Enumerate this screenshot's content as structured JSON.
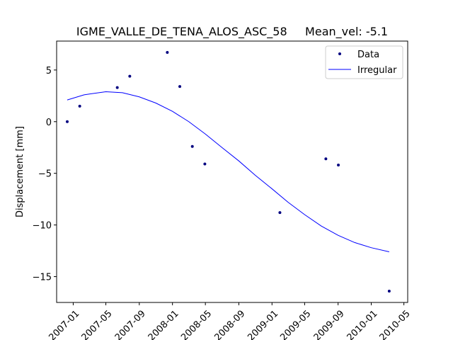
{
  "chart_data": {
    "type": "scatter",
    "title": "IGME_VALLE_DE_TENA_ALOS_ASC_58     Mean_vel: -5.1",
    "xlabel": "",
    "ylabel": "Displacement [mm]",
    "xlim": [
      "2006-11-01",
      "2010-05-15"
    ],
    "ylim": [
      -17.5,
      7.8
    ],
    "x_ticks": [
      "2007-01",
      "2007-05",
      "2007-09",
      "2008-01",
      "2008-05",
      "2008-09",
      "2009-01",
      "2009-05",
      "2009-09",
      "2010-01",
      "2010-05"
    ],
    "y_ticks": [
      5,
      0,
      -5,
      -10,
      -15
    ],
    "y_tick_labels": [
      "5",
      "0",
      "−5",
      "−10",
      "−15"
    ],
    "grid": false,
    "legend_position": "top-right",
    "series": [
      {
        "name": "Data",
        "kind": "points",
        "color": "#000080",
        "points": [
          {
            "x": "2006-12-10",
            "y": 0.0
          },
          {
            "x": "2007-01-25",
            "y": 1.5
          },
          {
            "x": "2007-06-12",
            "y": 3.3
          },
          {
            "x": "2007-07-28",
            "y": 4.4
          },
          {
            "x": "2007-12-13",
            "y": 6.7
          },
          {
            "x": "2008-01-28",
            "y": 3.4
          },
          {
            "x": "2008-03-14",
            "y": -2.4
          },
          {
            "x": "2008-04-29",
            "y": -4.1
          },
          {
            "x": "2009-01-30",
            "y": -8.8
          },
          {
            "x": "2009-07-18",
            "y": -3.6
          },
          {
            "x": "2009-09-02",
            "y": -4.2
          },
          {
            "x": "2010-03-08",
            "y": -16.4
          }
        ]
      },
      {
        "name": "Irregular",
        "kind": "line",
        "color": "#0000ff",
        "points": [
          {
            "x": "2006-12-10",
            "y": 2.1
          },
          {
            "x": "2007-02-10",
            "y": 2.6
          },
          {
            "x": "2007-05-01",
            "y": 2.9
          },
          {
            "x": "2007-07-01",
            "y": 2.8
          },
          {
            "x": "2007-09-01",
            "y": 2.4
          },
          {
            "x": "2007-11-01",
            "y": 1.8
          },
          {
            "x": "2008-01-01",
            "y": 1.0
          },
          {
            "x": "2008-03-01",
            "y": 0.0
          },
          {
            "x": "2008-05-01",
            "y": -1.2
          },
          {
            "x": "2008-07-01",
            "y": -2.5
          },
          {
            "x": "2008-09-01",
            "y": -3.8
          },
          {
            "x": "2008-11-01",
            "y": -5.2
          },
          {
            "x": "2009-01-01",
            "y": -6.5
          },
          {
            "x": "2009-03-01",
            "y": -7.8
          },
          {
            "x": "2009-05-01",
            "y": -9.0
          },
          {
            "x": "2009-07-01",
            "y": -10.1
          },
          {
            "x": "2009-09-01",
            "y": -11.0
          },
          {
            "x": "2009-11-01",
            "y": -11.7
          },
          {
            "x": "2010-01-01",
            "y": -12.2
          },
          {
            "x": "2010-03-08",
            "y": -12.6
          }
        ]
      }
    ],
    "legend": [
      {
        "label": "Data",
        "marker": "point"
      },
      {
        "label": "Irregular",
        "marker": "line"
      }
    ]
  }
}
